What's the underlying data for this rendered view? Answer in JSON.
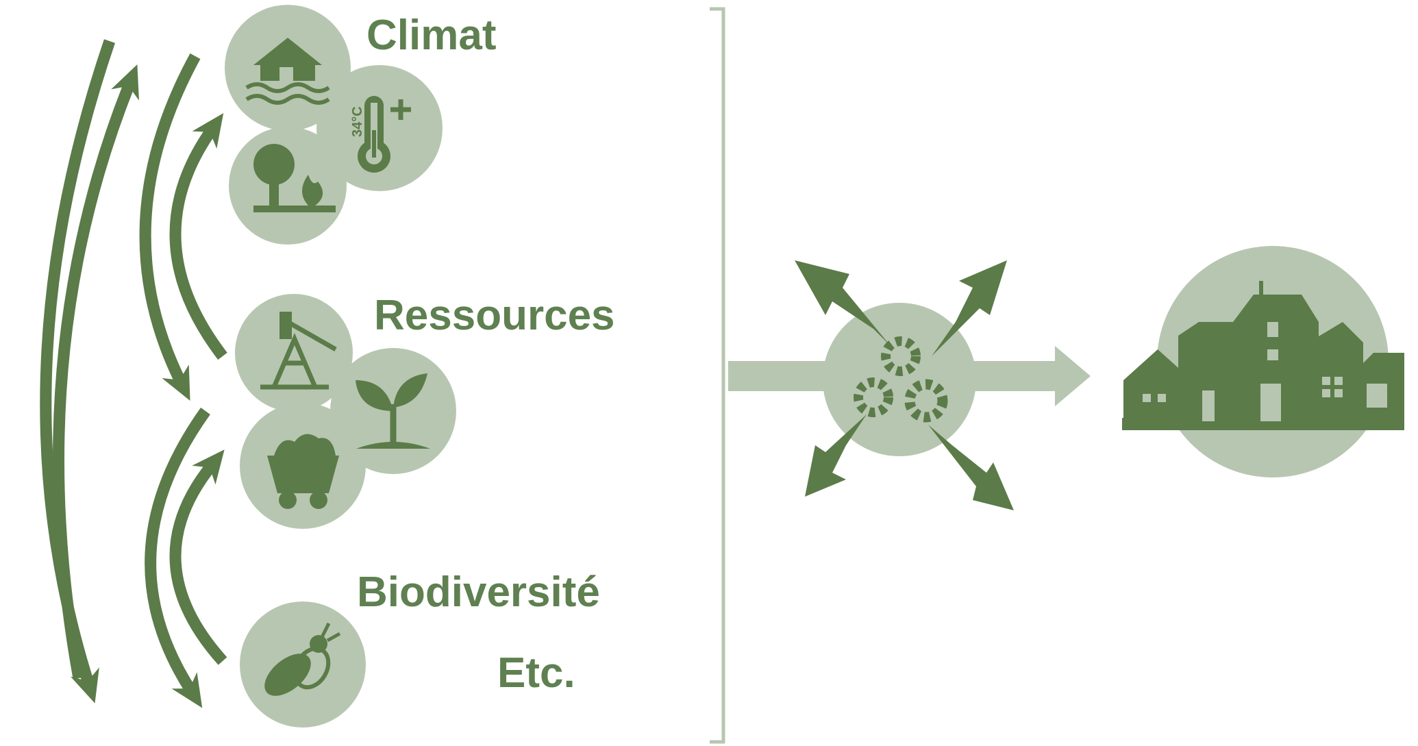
{
  "labels": {
    "climate": "Climat",
    "resources": "Ressources",
    "biodiversity": "Biodiversité",
    "etc": "Etc."
  },
  "thermometer": "34°C"
}
